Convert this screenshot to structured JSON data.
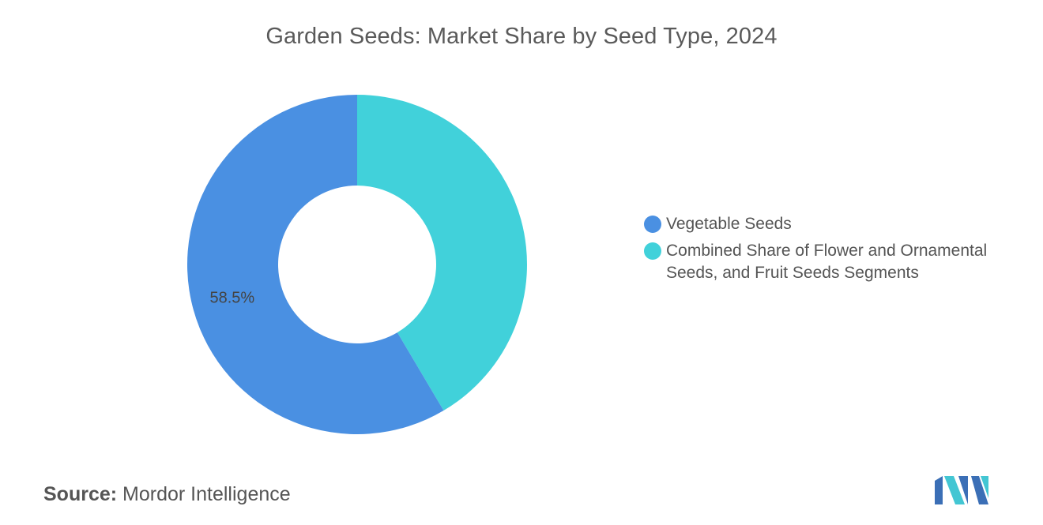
{
  "chart_data": {
    "type": "pie",
    "donut": true,
    "title": "Garden Seeds: Market Share by Seed Type, 2024",
    "slices": [
      {
        "label": "Combined Share of Flower and Ornamental Seeds, and Fruit Seeds Segments",
        "value": 41.5,
        "color": "#41d1da",
        "data_label": ""
      },
      {
        "label": "Vegetable Seeds",
        "value": 58.5,
        "color": "#4a90e2",
        "data_label": "58.5%"
      }
    ],
    "legend": {
      "position": "right",
      "items": [
        {
          "label": "Vegetable Seeds",
          "color": "#4a90e2"
        },
        {
          "label": "Combined Share of Flower and Ornamental Seeds, and Fruit Seeds Segments",
          "color": "#41d1da"
        }
      ]
    }
  },
  "source": {
    "key": "Source:",
    "value": "Mordor Intelligence"
  },
  "logo": {
    "icon": "mordor-intelligence-logo",
    "colors": [
      "#3b6fb6",
      "#43c6d3"
    ]
  }
}
